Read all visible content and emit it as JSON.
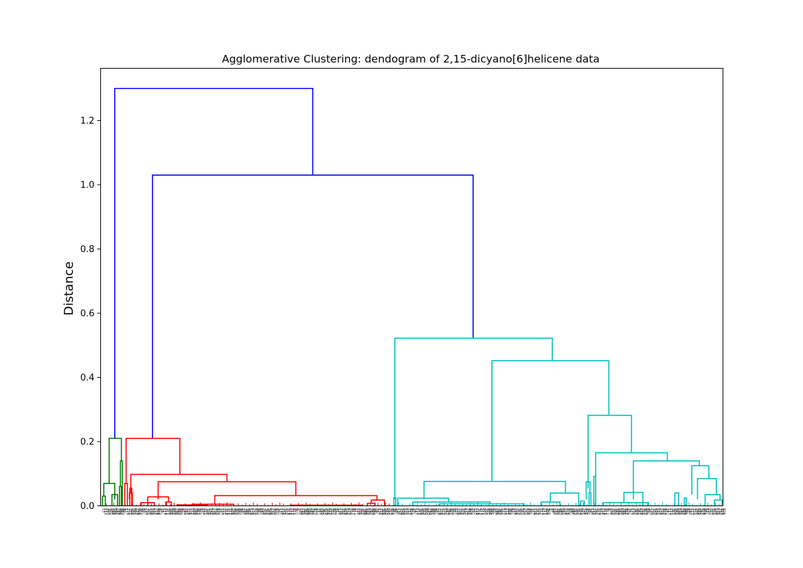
{
  "chart_data": {
    "type": "dendrogram",
    "title": "Agglomerative Clustering: dendogram of 2,15-dicyano[6]helicene data",
    "ylabel": "Distance",
    "xlabel": "",
    "ylim": [
      0,
      1.3
    ],
    "yticks": [
      {
        "value": 0.0,
        "label": "0.0"
      },
      {
        "value": 0.2,
        "label": "0.2"
      },
      {
        "value": 0.4,
        "label": "0.4"
      },
      {
        "value": 0.6,
        "label": "0.6"
      },
      {
        "value": 0.8,
        "label": "0.8"
      },
      {
        "value": 1.0,
        "label": "1.0"
      },
      {
        "value": 1.2,
        "label": "1.2"
      }
    ],
    "leaf_count": 330,
    "grid": false,
    "legend": "none",
    "colors": {
      "root": "#0000ff",
      "cluster_green": "#008000",
      "cluster_red": "#ff0000",
      "cluster_cyan": "#00bfbf"
    },
    "clusters": [
      {
        "color_key": "cluster_green",
        "leaf_range": [
          0,
          12
        ],
        "merge_height": 0.21
      },
      {
        "color_key": "cluster_red",
        "leaf_range": [
          12,
          155
        ],
        "merge_height": 0.21
      },
      {
        "color_key": "cluster_cyan",
        "leaf_range": [
          155,
          330
        ],
        "merge_height": 0.522
      }
    ],
    "links": [
      {
        "color": "root",
        "x": [
          7,
          7,
          112,
          112
        ],
        "y": [
          0.21,
          1.3,
          1.3,
          1.03
        ]
      },
      {
        "color": "root",
        "x": [
          27,
          27,
          197,
          197
        ],
        "y": [
          0.21,
          1.03,
          1.03,
          0.522
        ]
      },
      {
        "color": "cluster_green",
        "x": [
          4,
          4,
          10.5,
          10.5
        ],
        "y": [
          0.07,
          0.21,
          0.21,
          0.14
        ]
      },
      {
        "color": "cluster_green",
        "x": [
          1.2,
          1.2,
          7,
          7
        ],
        "y": [
          0.03,
          0.07,
          0.07,
          0.02
        ]
      },
      {
        "color": "cluster_green",
        "x": [
          0.5,
          0.5,
          2,
          2
        ],
        "y": [
          0.0,
          0.03,
          0.03,
          0.0
        ]
      },
      {
        "color": "cluster_green",
        "x": [
          5.5,
          5.5,
          8.5,
          8.5
        ],
        "y": [
          0.0,
          0.035,
          0.035,
          0.0
        ]
      },
      {
        "color": "cluster_green",
        "x": [
          10,
          10,
          11,
          11
        ],
        "y": [
          0.06,
          0.14,
          0.14,
          0.0
        ]
      },
      {
        "color": "cluster_green",
        "x": [
          9.5,
          9.5,
          10.5,
          10.5
        ],
        "y": [
          0.0,
          0.06,
          0.06,
          0.0
        ]
      },
      {
        "color": "cluster_red",
        "x": [
          13,
          13,
          41.5,
          41.5
        ],
        "y": [
          0.07,
          0.21,
          0.21,
          0.098
        ]
      },
      {
        "color": "cluster_red",
        "x": [
          12.3,
          12.3,
          13.7,
          13.7
        ],
        "y": [
          0.0,
          0.07,
          0.07,
          0.0
        ]
      },
      {
        "color": "cluster_red",
        "x": [
          15.5,
          15.5,
          66.5,
          66.5
        ],
        "y": [
          0.04,
          0.098,
          0.098,
          0.075
        ]
      },
      {
        "color": "cluster_red",
        "x": [
          14.8,
          14.8,
          16.3,
          16.3
        ],
        "y": [
          0.02,
          0.04,
          0.04,
          0.0
        ]
      },
      {
        "color": "cluster_red",
        "x": [
          15,
          15,
          16,
          16
        ],
        "y": [
          0.0,
          0.055,
          0.055,
          0.0
        ]
      },
      {
        "color": "cluster_red",
        "x": [
          30,
          30,
          103,
          103
        ],
        "y": [
          0.02,
          0.075,
          0.075,
          0.032
        ]
      },
      {
        "color": "cluster_red",
        "x": [
          24.5,
          24.5,
          35.5,
          35.5
        ],
        "y": [
          0.0,
          0.028,
          0.028,
          0.01
        ]
      },
      {
        "color": "cluster_red",
        "x": [
          21,
          21,
          28,
          28
        ],
        "y": [
          0.0,
          0.01,
          0.01,
          0.0
        ]
      },
      {
        "color": "cluster_red",
        "x": [
          34,
          34,
          37,
          37
        ],
        "y": [
          0.0,
          0.012,
          0.012,
          0.0
        ]
      },
      {
        "color": "cluster_red",
        "x": [
          60,
          60,
          146,
          146
        ],
        "y": [
          0.003,
          0.032,
          0.032,
          0.018
        ]
      },
      {
        "color": "cluster_red",
        "x": [
          143,
          143,
          150,
          150
        ],
        "y": [
          0.008,
          0.018,
          0.018,
          0.0
        ]
      },
      {
        "color": "cluster_red",
        "x": [
          141,
          141,
          145,
          145
        ],
        "y": [
          0.0,
          0.008,
          0.008,
          0.0
        ]
      },
      {
        "color": "cluster_red",
        "x": [
          40,
          40,
          56,
          56
        ],
        "y": [
          0.0,
          0.003,
          0.003,
          0.0
        ]
      },
      {
        "color": "cluster_red",
        "x": [
          48,
          48,
          70,
          70
        ],
        "y": [
          0.0,
          0.005,
          0.005,
          0.0
        ]
      },
      {
        "color": "cluster_red",
        "x": [
          100,
          100,
          138,
          138
        ],
        "y": [
          0.0,
          0.002,
          0.002,
          0.0
        ]
      },
      {
        "color": "cluster_cyan",
        "x": [
          155.5,
          155.5,
          239,
          239
        ],
        "y": [
          0.02,
          0.522,
          0.522,
          0.452
        ]
      },
      {
        "color": "cluster_cyan",
        "x": [
          155,
          155,
          156,
          156
        ],
        "y": [
          0.0,
          0.025,
          0.025,
          0.0
        ]
      },
      {
        "color": "cluster_cyan",
        "x": [
          207,
          207,
          269,
          269
        ],
        "y": [
          0.076,
          0.452,
          0.452,
          0.282
        ]
      },
      {
        "color": "cluster_cyan",
        "x": [
          171,
          171,
          246,
          246
        ],
        "y": [
          0.02,
          0.076,
          0.076,
          0.04
        ]
      },
      {
        "color": "cluster_cyan",
        "x": [
          157,
          157,
          184,
          184
        ],
        "y": [
          0.0,
          0.024,
          0.024,
          0.012
        ]
      },
      {
        "color": "cluster_cyan",
        "x": [
          165,
          165,
          206,
          206
        ],
        "y": [
          0.0,
          0.012,
          0.012,
          0.006
        ]
      },
      {
        "color": "cluster_cyan",
        "x": [
          179,
          179,
          224,
          224
        ],
        "y": [
          0.0,
          0.006,
          0.006,
          0.0
        ]
      },
      {
        "color": "cluster_cyan",
        "x": [
          238,
          238,
          253,
          253
        ],
        "y": [
          0.012,
          0.04,
          0.04,
          0.0
        ]
      },
      {
        "color": "cluster_cyan",
        "x": [
          233,
          233,
          243,
          243
        ],
        "y": [
          0.0,
          0.012,
          0.012,
          0.0
        ]
      },
      {
        "color": "cluster_cyan",
        "x": [
          258,
          258,
          281,
          281
        ],
        "y": [
          0.055,
          0.282,
          0.282,
          0.165
        ]
      },
      {
        "color": "cluster_cyan",
        "x": [
          257,
          257,
          259,
          259
        ],
        "y": [
          0.02,
          0.075,
          0.075,
          0.04
        ]
      },
      {
        "color": "cluster_cyan",
        "x": [
          254,
          254,
          256,
          256
        ],
        "y": [
          0.0,
          0.015,
          0.015,
          0.0
        ]
      },
      {
        "color": "cluster_cyan",
        "x": [
          258.5,
          258.5,
          259.5,
          259.5
        ],
        "y": [
          0.0,
          0.04,
          0.04,
          0.0
        ]
      },
      {
        "color": "cluster_cyan",
        "x": [
          261,
          261,
          262,
          262
        ],
        "y": [
          0.0,
          0.092,
          0.092,
          0.0
        ]
      },
      {
        "color": "cluster_cyan",
        "x": [
          262,
          262,
          300,
          300
        ],
        "y": [
          0.0,
          0.165,
          0.165,
          0.14
        ]
      },
      {
        "color": "cluster_cyan",
        "x": [
          282,
          282,
          317,
          317
        ],
        "y": [
          0.02,
          0.14,
          0.14,
          0.125
        ]
      },
      {
        "color": "cluster_cyan",
        "x": [
          277,
          277,
          287,
          287
        ],
        "y": [
          0.01,
          0.042,
          0.042,
          0.0
        ]
      },
      {
        "color": "cluster_cyan",
        "x": [
          266,
          266,
          290,
          290
        ],
        "y": [
          0.0,
          0.01,
          0.01,
          0.0
        ]
      },
      {
        "color": "cluster_cyan",
        "x": [
          313,
          313,
          322,
          322
        ],
        "y": [
          0.035,
          0.125,
          0.125,
          0.085
        ]
      },
      {
        "color": "cluster_cyan",
        "x": [
          304,
          304,
          306,
          306
        ],
        "y": [
          0.0,
          0.04,
          0.04,
          0.0
        ]
      },
      {
        "color": "cluster_cyan",
        "x": [
          309,
          309,
          310,
          310
        ],
        "y": [
          0.0,
          0.025,
          0.025,
          0.0
        ]
      },
      {
        "color": "cluster_cyan",
        "x": [
          316,
          316,
          326,
          326
        ],
        "y": [
          0.02,
          0.085,
          0.085,
          0.035
        ]
      },
      {
        "color": "cluster_cyan",
        "x": [
          320,
          320,
          328,
          328
        ],
        "y": [
          0.0,
          0.035,
          0.035,
          0.018
        ]
      },
      {
        "color": "cluster_cyan",
        "x": [
          325,
          325,
          329,
          329
        ],
        "y": [
          0.0,
          0.018,
          0.018,
          0.0
        ]
      }
    ]
  }
}
